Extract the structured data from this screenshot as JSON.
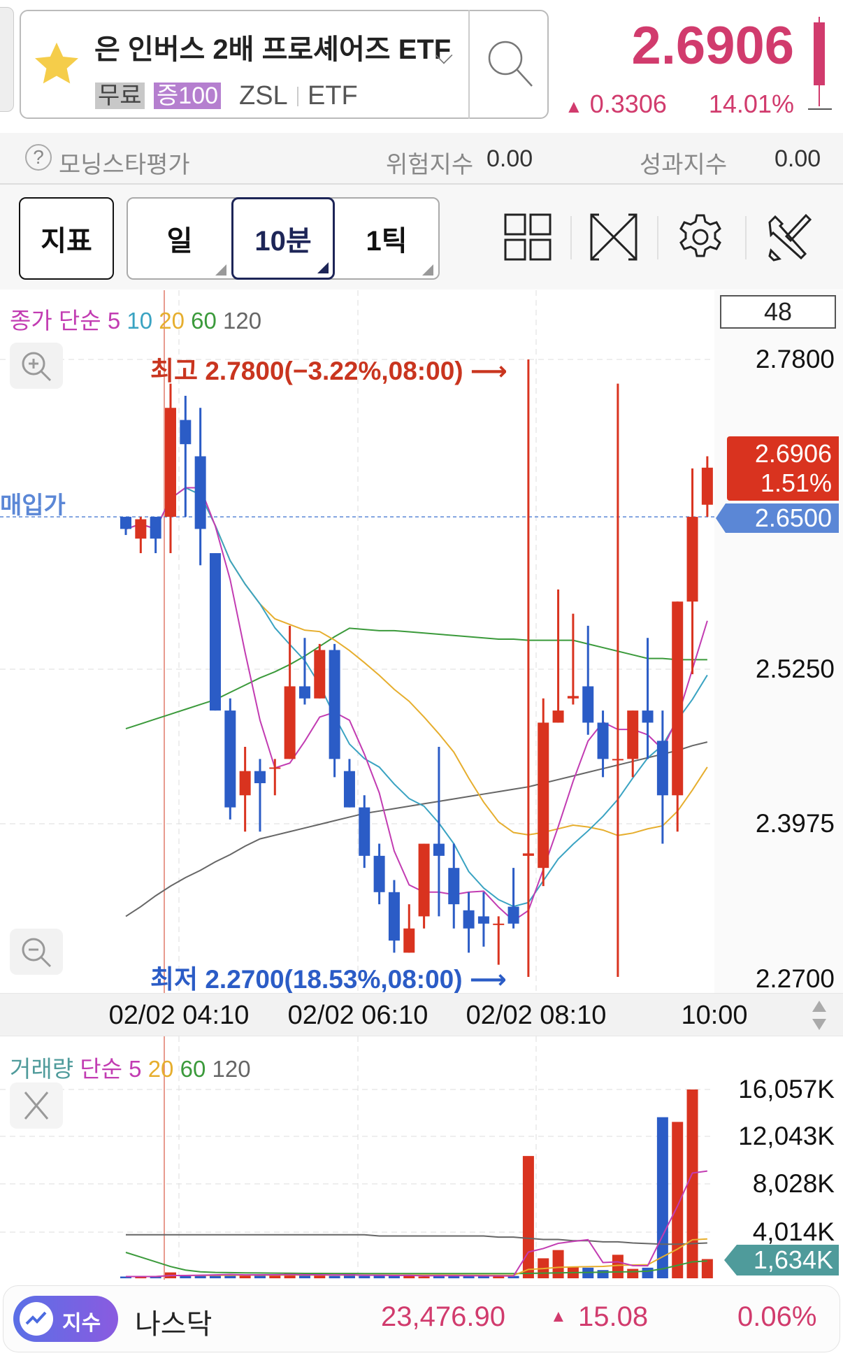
{
  "header": {
    "title": "은 인버스 2배 프로셰어즈 ETF",
    "badge_free": "무료",
    "badge_margin": "증100",
    "ticker": "ZSL",
    "type": "ETF",
    "price": "2.6906",
    "change": "0.3306",
    "change_pct": "14.01%",
    "star_icon": "star-icon",
    "search_icon": "search-icon"
  },
  "rating": {
    "label": "모닝스타평가",
    "risk_label": "위험지수",
    "risk_value": "0.00",
    "perf_label": "성과지수",
    "perf_value": "0.00"
  },
  "toolbar": {
    "indicator": "지표",
    "periods": [
      "일",
      "10분",
      "1틱"
    ],
    "selected": "10분",
    "icons": [
      "grid-layout-icon",
      "fullscreen-icon",
      "gear-icon",
      "tools-icon"
    ]
  },
  "colors": {
    "up": "#d9331f",
    "down": "#2b5cc6",
    "accent": "#d13b6d",
    "ma5": "#c23cb2",
    "ma10": "#3aa3c2",
    "ma20": "#e6ae2e",
    "ma60": "#3b9a3b",
    "ma120": "#666666",
    "buy": "#5b87d6",
    "vol_tag": "#4f9b9b"
  },
  "chart_data": {
    "type": "candlestick",
    "legend": {
      "prefix": "종가",
      "method": "단순",
      "periods": [
        "5",
        "10",
        "20",
        "60",
        "120"
      ]
    },
    "count_box": "48",
    "y_ticks": [
      "2.7800",
      "2.5250",
      "2.3975",
      "2.2700"
    ],
    "ylim": [
      2.27,
      2.78
    ],
    "current": {
      "price": "2.6906",
      "pct": "1.51%"
    },
    "buy_price": {
      "label": "매입가",
      "value": "2.6500"
    },
    "high_note": "최고 2.7800(−3.22%,08:00)",
    "low_note": "최저 2.2700(18.53%,08:00)",
    "x_ticks": [
      "02/02 04:10",
      "02/02 06:10",
      "02/02 08:10",
      "10:00"
    ],
    "ohlc": [
      [
        2.65,
        2.65,
        2.635,
        2.64
      ],
      [
        2.632,
        2.65,
        2.62,
        2.648
      ],
      [
        2.65,
        2.65,
        2.62,
        2.632
      ],
      [
        2.65,
        2.76,
        2.62,
        2.74
      ],
      [
        2.73,
        2.75,
        2.65,
        2.71
      ],
      [
        2.7,
        2.74,
        2.61,
        2.64
      ],
      [
        2.62,
        2.62,
        2.49,
        2.49
      ],
      [
        2.49,
        2.5,
        2.4,
        2.41
      ],
      [
        2.42,
        2.46,
        2.39,
        2.44
      ],
      [
        2.44,
        2.45,
        2.39,
        2.43
      ],
      [
        2.442,
        2.45,
        2.42,
        2.443
      ],
      [
        2.45,
        2.56,
        2.45,
        2.51
      ],
      [
        2.51,
        2.55,
        2.495,
        2.5
      ],
      [
        2.5,
        2.545,
        2.5,
        2.54
      ],
      [
        2.54,
        2.545,
        2.435,
        2.45
      ],
      [
        2.44,
        2.45,
        2.41,
        2.41
      ],
      [
        2.41,
        2.42,
        2.36,
        2.37
      ],
      [
        2.37,
        2.38,
        2.33,
        2.34
      ],
      [
        2.34,
        2.35,
        2.29,
        2.3
      ],
      [
        2.29,
        2.33,
        2.29,
        2.31
      ],
      [
        2.32,
        2.38,
        2.31,
        2.38
      ],
      [
        2.38,
        2.46,
        2.32,
        2.37
      ],
      [
        2.36,
        2.38,
        2.31,
        2.33
      ],
      [
        2.325,
        2.34,
        2.29,
        2.31
      ],
      [
        2.32,
        2.34,
        2.295,
        2.314
      ],
      [
        2.313,
        2.32,
        2.28,
        2.314
      ],
      [
        2.328,
        2.36,
        2.31,
        2.314
      ],
      [
        2.37,
        2.78,
        2.27,
        2.372
      ],
      [
        2.36,
        2.5,
        2.345,
        2.48
      ],
      [
        2.48,
        2.59,
        2.48,
        2.49
      ],
      [
        2.5,
        2.57,
        2.495,
        2.502
      ],
      [
        2.51,
        2.56,
        2.47,
        2.48
      ],
      [
        2.48,
        2.49,
        2.435,
        2.45
      ],
      [
        2.449,
        2.76,
        2.27,
        2.45
      ],
      [
        2.45,
        2.49,
        2.435,
        2.49
      ],
      [
        2.49,
        2.55,
        2.45,
        2.48
      ],
      [
        2.465,
        2.49,
        2.38,
        2.42
      ],
      [
        2.42,
        2.58,
        2.39,
        2.58
      ],
      [
        2.58,
        2.69,
        2.52,
        2.65
      ],
      [
        2.66,
        2.7,
        2.65,
        2.6906
      ]
    ],
    "ma60": [
      2.475,
      2.479,
      2.483,
      2.487,
      2.491,
      2.495,
      2.499,
      2.505,
      2.511,
      2.517,
      2.522,
      2.528,
      2.535,
      2.543,
      2.551,
      2.558,
      2.557,
      2.556,
      2.556,
      2.555,
      2.554,
      2.553,
      2.552,
      2.551,
      2.55,
      2.549,
      2.549,
      2.548,
      2.548,
      2.548,
      2.548,
      2.545,
      2.542,
      2.539,
      2.536,
      2.533,
      2.533,
      2.532,
      2.532,
      2.532
    ],
    "ma120": [
      2.32,
      2.328,
      2.337,
      2.345,
      2.352,
      2.358,
      2.365,
      2.371,
      2.378,
      2.384,
      2.387,
      2.39,
      2.393,
      2.396,
      2.399,
      2.402,
      2.405,
      2.407,
      2.409,
      2.411,
      2.413,
      2.415,
      2.417,
      2.419,
      2.421,
      2.423,
      2.425,
      2.427,
      2.43,
      2.433,
      2.436,
      2.439,
      2.442,
      2.445,
      2.448,
      2.451,
      2.454,
      2.457,
      2.461,
      2.464
    ],
    "volume": {
      "legend": {
        "prefix": "거래량",
        "method": "단순",
        "periods": [
          "5",
          "20",
          "60",
          "120"
        ]
      },
      "y_ticks": [
        "16,057K",
        "12,043K",
        "8,028K",
        "4,014K"
      ],
      "ylim_k": [
        0,
        16057
      ],
      "current": "1,634K",
      "values_k": [
        150,
        150,
        150,
        500,
        250,
        250,
        300,
        350,
        300,
        300,
        250,
        400,
        250,
        300,
        200,
        350,
        200,
        250,
        200,
        250,
        150,
        300,
        200,
        200,
        200,
        150,
        200,
        10400,
        1700,
        2400,
        1000,
        900,
        700,
        2000,
        800,
        900,
        13700,
        13300,
        16057,
        1634
      ],
      "ma60_k": [
        2200,
        1800,
        1400,
        1000,
        700,
        550,
        500,
        480,
        460,
        450,
        440,
        430,
        420,
        420,
        410,
        410,
        400,
        400,
        400,
        400,
        400,
        400,
        400,
        400,
        400,
        400,
        400,
        420,
        440,
        460,
        480,
        500,
        520,
        540,
        560,
        600,
        800,
        1100,
        1400,
        1470
      ],
      "ma120_k": [
        3700,
        3700,
        3700,
        3700,
        3700,
        3700,
        3700,
        3700,
        3700,
        3700,
        3700,
        3700,
        3700,
        3700,
        3700,
        3700,
        3700,
        3600,
        3600,
        3600,
        3600,
        3600,
        3600,
        3600,
        3600,
        3500,
        3500,
        3400,
        3300,
        3300,
        3200,
        3200,
        3100,
        3100,
        3000,
        2950,
        2900,
        2900,
        2950,
        3000
      ]
    }
  },
  "index_bar": {
    "badge": "지수",
    "name": "나스닥",
    "value": "23,476.90",
    "change": "15.08",
    "pct": "0.06%"
  }
}
